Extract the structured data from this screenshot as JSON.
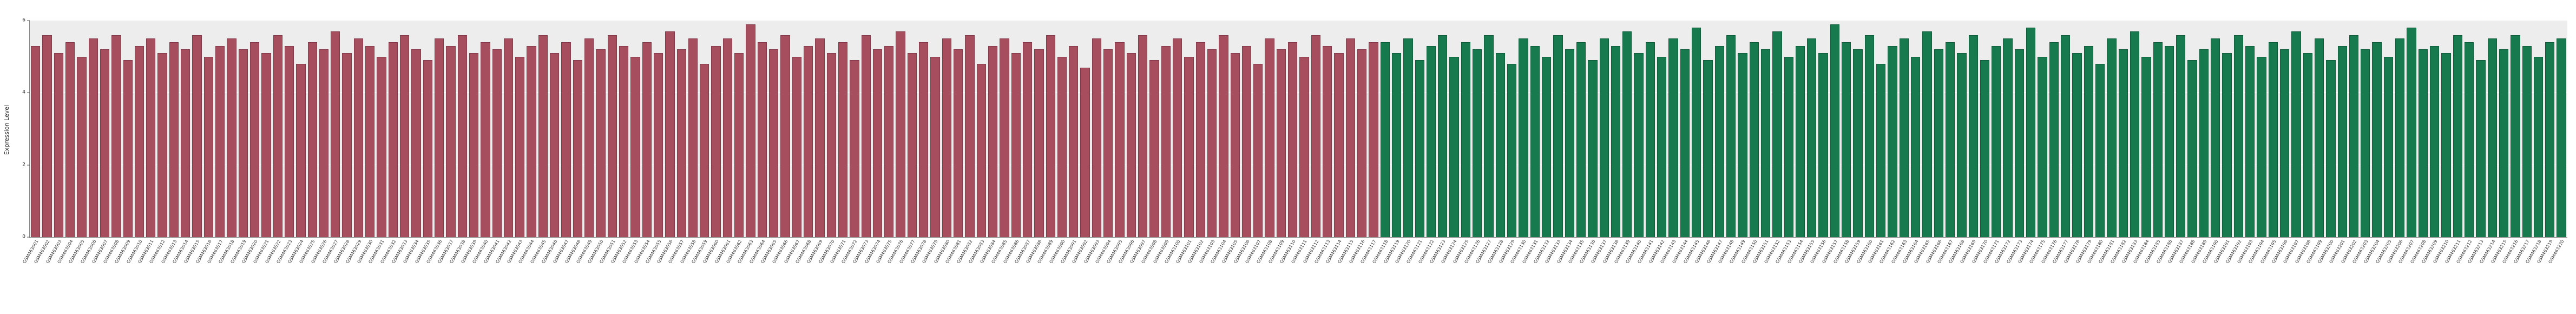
{
  "page": {
    "background": "#ffffff"
  },
  "chart_data": {
    "type": "bar",
    "title": "",
    "xlabel": "",
    "ylabel": "Expression Level",
    "ylim": [
      0,
      6
    ],
    "yticks": [
      0,
      2,
      4,
      6
    ],
    "grid": true,
    "legend_position": "none",
    "plot_background": "#ededed",
    "x_tick_rotation_deg": 60,
    "series": [
      {
        "name": "group-red",
        "color": "#a64d5e",
        "edge_color": "#84394a",
        "label_prefix": "GSM46",
        "label_start": 3001,
        "values": [
          5.3,
          5.6,
          5.1,
          5.4,
          5.0,
          5.5,
          5.2,
          5.6,
          4.9,
          5.3,
          5.5,
          5.1,
          5.4,
          5.2,
          5.6,
          5.0,
          5.3,
          5.5,
          5.2,
          5.4,
          5.1,
          5.6,
          5.3,
          4.8,
          5.4,
          5.2,
          5.7,
          5.1,
          5.5,
          5.3,
          5.0,
          5.4,
          5.6,
          5.2,
          4.9,
          5.5,
          5.3,
          5.6,
          5.1,
          5.4,
          5.2,
          5.5,
          5.0,
          5.3,
          5.6,
          5.1,
          5.4,
          4.9,
          5.5,
          5.2,
          5.6,
          5.3,
          5.0,
          5.4,
          5.1,
          5.7,
          5.2,
          5.5,
          4.8,
          5.3,
          5.5,
          5.1,
          5.9,
          5.4,
          5.2,
          5.6,
          5.0,
          5.3,
          5.5,
          5.1,
          5.4,
          4.9,
          5.6,
          5.2,
          5.3,
          5.7,
          5.1,
          5.4,
          5.0,
          5.5,
          5.2,
          5.6,
          4.8,
          5.3,
          5.5,
          5.1,
          5.4,
          5.2,
          5.6,
          5.0,
          5.3,
          4.7,
          5.5,
          5.2,
          5.4,
          5.1,
          5.6,
          4.9,
          5.3,
          5.5,
          5.0,
          5.4,
          5.2,
          5.6,
          5.1,
          5.3,
          4.8,
          5.5,
          5.2,
          5.4,
          5.0,
          5.6,
          5.3,
          5.1,
          5.5,
          5.2,
          5.4
        ]
      },
      {
        "name": "group-green",
        "color": "#17794e",
        "edge_color": "#0e5c3a",
        "label_prefix": "GSM46",
        "label_start": 3118,
        "values": [
          5.4,
          5.1,
          5.5,
          4.9,
          5.3,
          5.6,
          5.0,
          5.4,
          5.2,
          5.6,
          5.1,
          4.8,
          5.5,
          5.3,
          5.0,
          5.6,
          5.2,
          5.4,
          4.9,
          5.5,
          5.3,
          5.7,
          5.1,
          5.4,
          5.0,
          5.5,
          5.2,
          5.8,
          4.9,
          5.3,
          5.6,
          5.1,
          5.4,
          5.2,
          5.7,
          5.0,
          5.3,
          5.5,
          5.1,
          5.9,
          5.4,
          5.2,
          5.6,
          4.8,
          5.3,
          5.5,
          5.0,
          5.7,
          5.2,
          5.4,
          5.1,
          5.6,
          4.9,
          5.3,
          5.5,
          5.2,
          5.8,
          5.0,
          5.4,
          5.6,
          5.1,
          5.3,
          4.8,
          5.5,
          5.2,
          5.7,
          5.0,
          5.4,
          5.3,
          5.6,
          4.9,
          5.2,
          5.5,
          5.1,
          5.6,
          5.3,
          5.0,
          5.4,
          5.2,
          5.7,
          5.1,
          5.5,
          4.9,
          5.3,
          5.6,
          5.2,
          5.4,
          5.0,
          5.5,
          5.8,
          5.2,
          5.3,
          5.1,
          5.6,
          5.4,
          4.9,
          5.5,
          5.2,
          5.6,
          5.3,
          5.0,
          5.4,
          5.5
        ]
      }
    ]
  }
}
